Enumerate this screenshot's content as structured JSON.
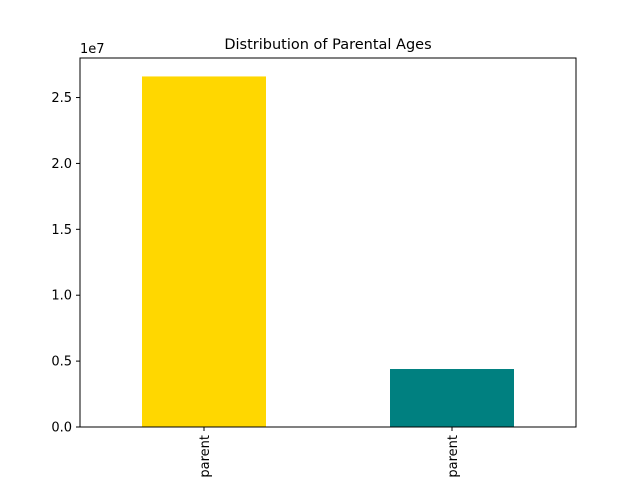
{
  "chart_data": {
    "type": "bar",
    "title": "Distribution of Parental Ages",
    "xlabel": "",
    "ylabel": "",
    "categories": [
      "parent",
      "parent"
    ],
    "values": [
      26600000,
      4400000
    ],
    "colors": [
      "#FFD700",
      "#008080"
    ],
    "ylim": [
      0,
      28000000
    ],
    "y_scale_label": "1e7",
    "y_ticks": [
      0,
      5000000,
      10000000,
      15000000,
      20000000,
      25000000
    ],
    "y_tick_labels": [
      "0.0",
      "0.5",
      "1.0",
      "1.5",
      "2.0",
      "2.5"
    ],
    "grid": false,
    "legend": "none"
  }
}
